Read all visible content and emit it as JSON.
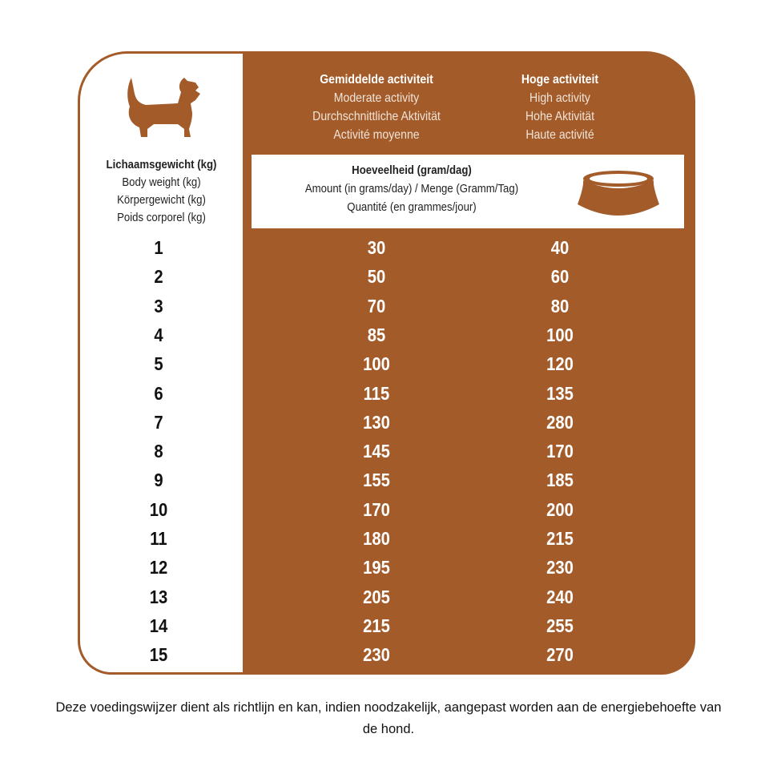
{
  "colors": {
    "brand_brown": "#a35b2a"
  },
  "weight_header": {
    "nl": "Lichaamsgewicht (kg)",
    "en": "Body weight (kg)",
    "de": "Körpergewicht (kg)",
    "fr": "Poids corporel (kg)"
  },
  "moderate_header": {
    "nl": "Gemiddelde activiteit",
    "en": "Moderate activity",
    "de": "Durchschnittliche Aktivität",
    "fr": "Activité moyenne"
  },
  "high_header": {
    "nl": "Hoge activiteit",
    "en": "High activity",
    "de": "Hohe Aktivität",
    "fr": "Haute activité"
  },
  "amount_header": {
    "nl": "Hoeveelheid (gram/dag)",
    "en_de": "Amount (in grams/day) / Menge (Gramm/Tag)",
    "fr": "Quantité (en grammes/jour)"
  },
  "icons": {
    "dog": "dog-silhouette-icon",
    "bowl": "food-bowl-icon"
  },
  "rows": [
    {
      "weight": "1",
      "moderate": "30",
      "high": "40"
    },
    {
      "weight": "2",
      "moderate": "50",
      "high": "60"
    },
    {
      "weight": "3",
      "moderate": "70",
      "high": "80"
    },
    {
      "weight": "4",
      "moderate": "85",
      "high": "100"
    },
    {
      "weight": "5",
      "moderate": "100",
      "high": "120"
    },
    {
      "weight": "6",
      "moderate": "115",
      "high": "135"
    },
    {
      "weight": "7",
      "moderate": "130",
      "high": "280"
    },
    {
      "weight": "8",
      "moderate": "145",
      "high": "170"
    },
    {
      "weight": "9",
      "moderate": "155",
      "high": "185"
    },
    {
      "weight": "10",
      "moderate": "170",
      "high": "200"
    },
    {
      "weight": "11",
      "moderate": "180",
      "high": "215"
    },
    {
      "weight": "12",
      "moderate": "195",
      "high": "230"
    },
    {
      "weight": "13",
      "moderate": "205",
      "high": "240"
    },
    {
      "weight": "14",
      "moderate": "215",
      "high": "255"
    },
    {
      "weight": "15",
      "moderate": "230",
      "high": "270"
    }
  ],
  "footnote": "Deze voedingswijzer dient als richtlijn en kan, indien noodzakelijk, aangepast worden aan de energiebehoefte van de hond."
}
